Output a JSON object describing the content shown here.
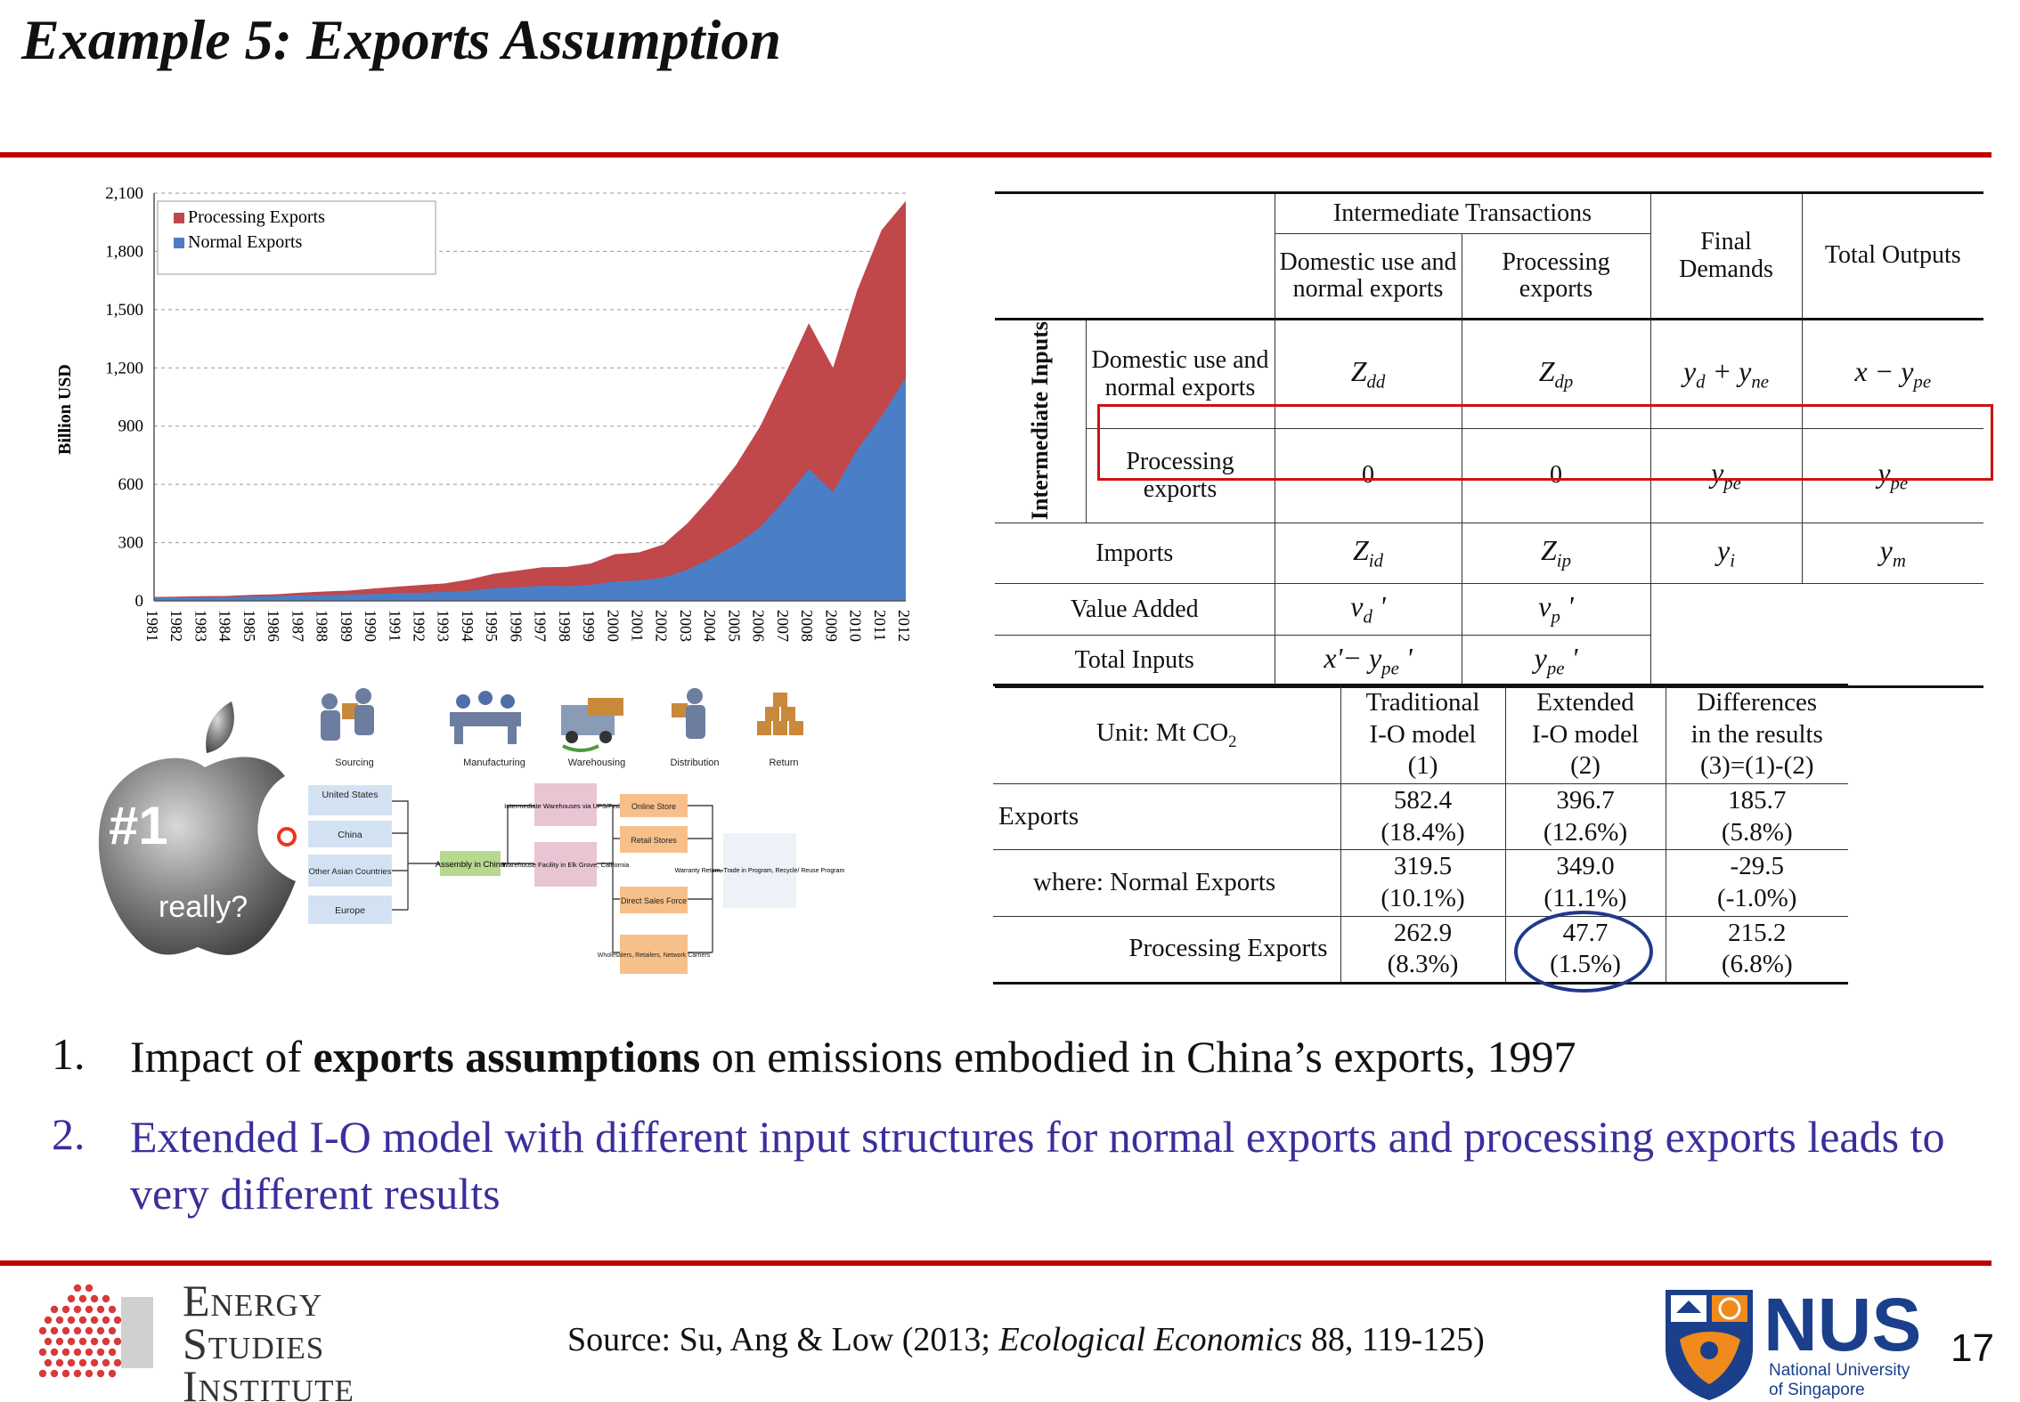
{
  "slide": {
    "title": "Example 5: Exports Assumption",
    "page_number": "17",
    "accent_color": "#c00000"
  },
  "chart_data": {
    "type": "area",
    "stacked": true,
    "ylabel": "Billion USD",
    "ylim": [
      0,
      2100
    ],
    "yticks": [
      "0",
      "300",
      "600",
      "900",
      "1,200",
      "1,500",
      "1,800",
      "2,100"
    ],
    "grid": "horizontal dashed",
    "legend_position": "top-left",
    "categories": [
      "1981",
      "1982",
      "1983",
      "1984",
      "1985",
      "1986",
      "1987",
      "1988",
      "1989",
      "1990",
      "1991",
      "1992",
      "1993",
      "1994",
      "1995",
      "1996",
      "1997",
      "1998",
      "1999",
      "2000",
      "2001",
      "2002",
      "2003",
      "2004",
      "2005",
      "2006",
      "2007",
      "2008",
      "2009",
      "2010",
      "2011",
      "2012"
    ],
    "series": [
      {
        "name": "Normal Exports",
        "color": "#4a7fc8",
        "values": [
          18,
          18,
          19,
          19,
          23,
          24,
          28,
          30,
          32,
          35,
          40,
          42,
          46,
          52,
          65,
          70,
          78,
          75,
          82,
          100,
          105,
          120,
          160,
          220,
          290,
          380,
          520,
          680,
          560,
          780,
          950,
          1150
        ]
      },
      {
        "name": "Processing Exports",
        "color": "#c0474a",
        "values": [
          2,
          4,
          5,
          6,
          8,
          10,
          14,
          18,
          21,
          28,
          33,
          40,
          44,
          58,
          74,
          86,
          95,
          100,
          110,
          140,
          145,
          170,
          240,
          320,
          410,
          520,
          640,
          750,
          640,
          820,
          960,
          910
        ]
      }
    ]
  },
  "io_table": {
    "header_intermediate": "Intermediate Transactions",
    "col_domestic": "Domestic use and normal exports",
    "col_processing": "Processing exports",
    "col_final": "Final Demands",
    "col_total": "Total Outputs",
    "row_group": "Intermediate Inputs",
    "row_domestic": "Domestic use and normal exports",
    "row_processing": "Processing exports",
    "row_imports": "Imports",
    "row_value_added": "Value Added",
    "row_total_inputs": "Total Inputs",
    "zero": "0"
  },
  "results": {
    "unit_label": "Unit: Mt CO",
    "unit_sub": "2",
    "col1": [
      "Traditional",
      "I-O model",
      "(1)"
    ],
    "col2": [
      "Extended",
      "I-O model",
      "(2)"
    ],
    "col3": [
      "Differences",
      "in the results",
      "(3)=(1)-(2)"
    ],
    "rows": [
      {
        "label": "Exports",
        "v1": "582.4",
        "p1": "(18.4%)",
        "v2": "396.7",
        "p2": "(12.6%)",
        "v3": "185.7",
        "p3": "(5.8%)"
      },
      {
        "label": "where: Normal Exports",
        "v1": "319.5",
        "p1": "(10.1%)",
        "v2": "349.0",
        "p2": "(11.1%)",
        "v3": "-29.5",
        "p3": "(-1.0%)"
      },
      {
        "label": "Processing Exports",
        "v1": "262.9",
        "p1": "(8.3%)",
        "v2": "47.7",
        "p2": "(1.5%)",
        "v3": "215.2",
        "p3": "(6.8%)"
      }
    ]
  },
  "supply_chain": {
    "badge": "#1",
    "badge_caption": "really?",
    "stages": [
      "Sourcing",
      "Manufacturing",
      "Warehousing",
      "Distribution",
      "Return"
    ],
    "sources": [
      "United States",
      "China",
      "Other Asian Countries",
      "Europe"
    ],
    "assembly": "Assembly in China",
    "warehouses": [
      "Intermediate Warehouses via UPS/Fedex",
      "Warehouse Facility in Elk Grove, California"
    ],
    "channels": [
      "Online Store",
      "Retail Stores",
      "Direct Sales Force",
      "Wholesalers, Retailers, Network Carriers"
    ],
    "return_box": "Warranty Return, Trade in Program, Recycle/ Reuse Program"
  },
  "bullets": [
    {
      "num": "1.",
      "pre": "Impact of ",
      "bold": "exports assumptions",
      "post": " on emissions embodied in China’s exports, 1997"
    },
    {
      "num": "2.",
      "text": "Extended I-O model with different input structures for normal exports and processing exports leads to very different results"
    }
  ],
  "footer": {
    "source_pre": "Source: Su, Ang & Low (2013; ",
    "source_journal": "Ecological Economics",
    "source_post": " 88, 119-125)",
    "esi_line1": "Energy",
    "esi_line2": "Studies",
    "esi_line3": "Institute",
    "nus_big": "NUS",
    "nus_line1": "National University",
    "nus_line2": "of Singapore"
  }
}
